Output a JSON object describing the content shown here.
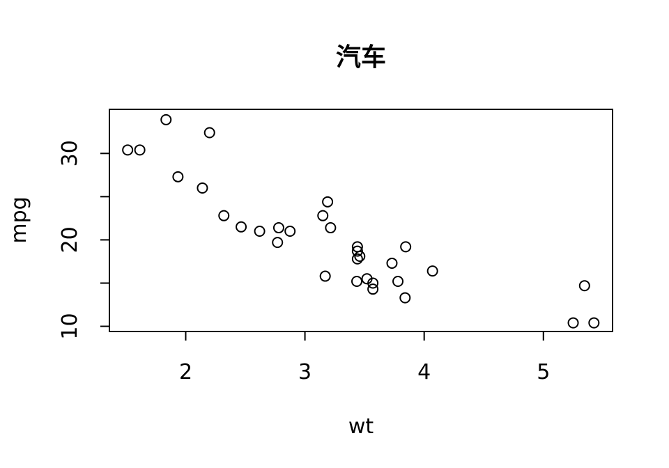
{
  "chart_data": {
    "type": "scatter",
    "title": "汽车",
    "xlabel": "wt",
    "ylabel": "mpg",
    "xlim": [
      1.36,
      5.58
    ],
    "ylim": [
      9.4,
      35.1
    ],
    "x_ticks": [
      2,
      3,
      4,
      5
    ],
    "y_ticks": [
      10,
      15,
      20,
      25,
      30
    ],
    "x_tick_labels": [
      "2",
      "3",
      "4",
      "5"
    ],
    "y_tick_labels": [
      "10",
      "",
      "20",
      "",
      "30"
    ],
    "grid": false,
    "points": [
      {
        "x": 2.62,
        "y": 21.0
      },
      {
        "x": 2.875,
        "y": 21.0
      },
      {
        "x": 2.32,
        "y": 22.8
      },
      {
        "x": 3.215,
        "y": 21.4
      },
      {
        "x": 3.44,
        "y": 18.7
      },
      {
        "x": 3.46,
        "y": 18.1
      },
      {
        "x": 3.57,
        "y": 14.3
      },
      {
        "x": 3.19,
        "y": 24.4
      },
      {
        "x": 3.15,
        "y": 22.8
      },
      {
        "x": 3.44,
        "y": 19.2
      },
      {
        "x": 3.44,
        "y": 17.8
      },
      {
        "x": 4.07,
        "y": 16.4
      },
      {
        "x": 3.73,
        "y": 17.3
      },
      {
        "x": 3.78,
        "y": 15.2
      },
      {
        "x": 5.25,
        "y": 10.4
      },
      {
        "x": 5.424,
        "y": 10.4
      },
      {
        "x": 5.345,
        "y": 14.7
      },
      {
        "x": 2.2,
        "y": 32.4
      },
      {
        "x": 1.615,
        "y": 30.4
      },
      {
        "x": 1.835,
        "y": 33.9
      },
      {
        "x": 2.465,
        "y": 21.5
      },
      {
        "x": 3.52,
        "y": 15.5
      },
      {
        "x": 3.435,
        "y": 15.2
      },
      {
        "x": 3.84,
        "y": 13.3
      },
      {
        "x": 3.845,
        "y": 19.2
      },
      {
        "x": 1.935,
        "y": 27.3
      },
      {
        "x": 2.14,
        "y": 26.0
      },
      {
        "x": 1.513,
        "y": 30.4
      },
      {
        "x": 3.17,
        "y": 15.8
      },
      {
        "x": 2.77,
        "y": 19.7
      },
      {
        "x": 3.57,
        "y": 15.0
      },
      {
        "x": 2.78,
        "y": 21.4
      }
    ]
  }
}
